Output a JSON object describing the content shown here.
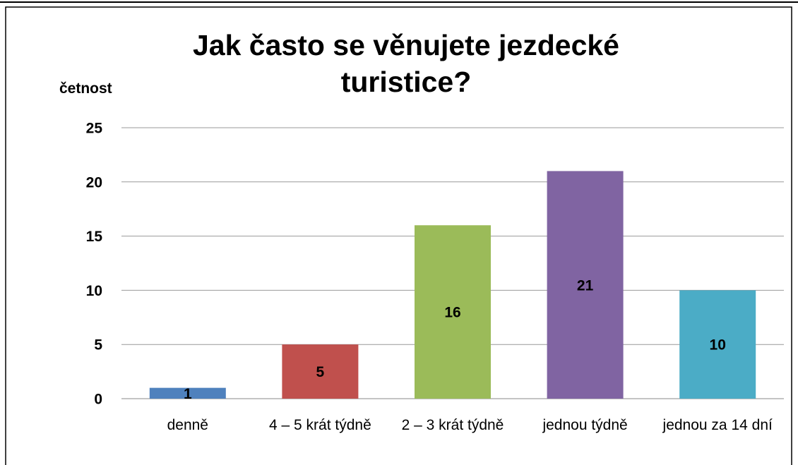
{
  "chart_data": {
    "type": "bar",
    "title": "Jak často se věnujete jezdecké turistice?",
    "y_label": "četnost",
    "categories": [
      "denně",
      "4 – 5 krát týdně",
      "2 – 3 krát týdně",
      "jednou týdně",
      "jednou za 14 dní"
    ],
    "values": [
      1,
      5,
      16,
      21,
      10
    ],
    "colors": [
      "#4f81bd",
      "#c0504d",
      "#9bbb59",
      "#8064a2",
      "#4bacc6"
    ],
    "ylim": [
      0,
      25
    ],
    "yticks": [
      0,
      5,
      10,
      15,
      20,
      25
    ],
    "grid": true
  }
}
